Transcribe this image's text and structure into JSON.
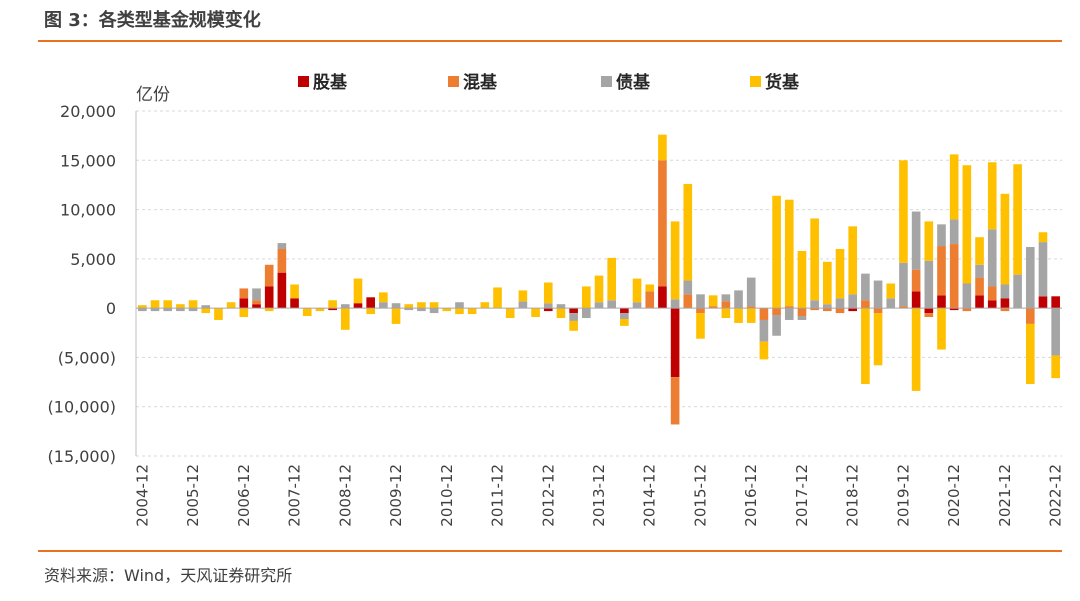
{
  "figure": {
    "title": "图 3：各类型基金规模变化",
    "source": "资料来源：Wind，天风证券研究所"
  },
  "colors": {
    "accent_rule": "#e8731c",
    "gridline": "#d9d9d9",
    "text": "#404040"
  },
  "chart_data": {
    "type": "bar",
    "stacked": true,
    "unit": "亿份",
    "legend_position": "top",
    "grid": true,
    "ylim": [
      -15000,
      20000
    ],
    "yticks": [
      20000,
      15000,
      10000,
      5000,
      0,
      -5000,
      -10000,
      -15000
    ],
    "ytick_labels": [
      "20,000",
      "15,000",
      "10,000",
      "5,000",
      "0",
      "(5,000)",
      "(10,000)",
      "(15,000)"
    ],
    "xtick_labels": [
      "2004-12",
      "2005-12",
      "2006-12",
      "2007-12",
      "2008-12",
      "2009-12",
      "2010-12",
      "2011-12",
      "2012-12",
      "2013-12",
      "2014-12",
      "2015-12",
      "2016-12",
      "2017-12",
      "2018-12",
      "2019-12",
      "2020-12",
      "2021-12",
      "2022-12"
    ],
    "categories": [
      "2004Q4",
      "2005Q1",
      "2005Q2",
      "2005Q3",
      "2005Q4",
      "2006Q1",
      "2006Q2",
      "2006Q3",
      "2006Q4",
      "2007Q1",
      "2007Q2",
      "2007Q3",
      "2007Q4",
      "2008Q1",
      "2008Q2",
      "2008Q3",
      "2008Q4",
      "2009Q1",
      "2009Q2",
      "2009Q3",
      "2009Q4",
      "2010Q1",
      "2010Q2",
      "2010Q3",
      "2010Q4",
      "2011Q1",
      "2011Q2",
      "2011Q3",
      "2011Q4",
      "2012Q1",
      "2012Q2",
      "2012Q3",
      "2012Q4",
      "2013Q1",
      "2013Q2",
      "2013Q3",
      "2013Q4",
      "2014Q1",
      "2014Q2",
      "2014Q3",
      "2014Q4",
      "2015Q1",
      "2015Q2",
      "2015Q3",
      "2015Q4",
      "2016Q1",
      "2016Q2",
      "2016Q3",
      "2016Q4",
      "2017Q1",
      "2017Q2",
      "2017Q3",
      "2017Q4",
      "2018Q1",
      "2018Q2",
      "2018Q3",
      "2018Q4",
      "2019Q1",
      "2019Q2",
      "2019Q3",
      "2019Q4",
      "2020Q1",
      "2020Q2",
      "2020Q3",
      "2020Q4",
      "2021Q1",
      "2021Q2",
      "2021Q3",
      "2021Q4",
      "2022Q1",
      "2022Q2",
      "2022Q3",
      "2022Q4"
    ],
    "series": [
      {
        "name": "股基",
        "color": "#c00000",
        "values": [
          0,
          0,
          0,
          0,
          0,
          0,
          0,
          0,
          1000,
          400,
          2200,
          3600,
          1000,
          0,
          0,
          -200,
          0,
          500,
          1100,
          0,
          0,
          0,
          0,
          0,
          0,
          0,
          0,
          0,
          0,
          0,
          0,
          0,
          -300,
          0,
          -500,
          0,
          0,
          0,
          -500,
          0,
          0,
          2200,
          -7000,
          0,
          0,
          0,
          0,
          0,
          0,
          0,
          0,
          0,
          0,
          0,
          0,
          0,
          -300,
          0,
          0,
          0,
          0,
          1700,
          -500,
          1300,
          -200,
          0,
          1300,
          800,
          1000,
          0,
          0,
          1200,
          1200
        ]
      },
      {
        "name": "混基",
        "color": "#ed7d31",
        "values": [
          0,
          0,
          0,
          0,
          0,
          0,
          0,
          0,
          1000,
          400,
          2200,
          2400,
          0,
          0,
          0,
          0,
          0,
          0,
          0,
          0,
          0,
          0,
          0,
          0,
          0,
          0,
          0,
          0,
          0,
          0,
          0,
          0,
          0,
          0,
          0,
          0,
          0,
          0,
          0,
          0,
          1700,
          12800,
          -4800,
          1400,
          -500,
          200,
          700,
          0,
          200,
          -1200,
          -700,
          200,
          -800,
          -200,
          -300,
          -500,
          0,
          800,
          -500,
          0,
          200,
          2200,
          -400,
          5000,
          6500,
          -300,
          1800,
          1400,
          -300,
          0,
          -1600,
          0,
          0
        ]
      },
      {
        "name": "债基",
        "color": "#a5a5a5",
        "values": [
          -300,
          -300,
          -300,
          -300,
          -300,
          300,
          0,
          0,
          0,
          1200,
          0,
          600,
          0,
          0,
          0,
          0,
          400,
          0,
          0,
          600,
          500,
          -200,
          -300,
          -500,
          0,
          600,
          0,
          0,
          0,
          0,
          700,
          0,
          500,
          400,
          -800,
          -1000,
          600,
          800,
          -600,
          600,
          0,
          0,
          900,
          1400,
          1400,
          0,
          700,
          1800,
          2900,
          -2200,
          -2100,
          -1200,
          -400,
          800,
          400,
          1000,
          1400,
          2700,
          2800,
          1000,
          4400,
          5900,
          4800,
          2200,
          2500,
          2500,
          1300,
          5800,
          1400,
          3400,
          6200,
          5500,
          -4800
        ]
      },
      {
        "name": "货基",
        "color": "#ffc000",
        "values": [
          300,
          800,
          800,
          400,
          800,
          -500,
          -1200,
          600,
          -900,
          0,
          -300,
          0,
          1400,
          -800,
          -300,
          800,
          -2200,
          2500,
          -600,
          1000,
          -1600,
          400,
          600,
          600,
          -300,
          -600,
          -600,
          600,
          2100,
          -1000,
          1100,
          -900,
          2100,
          -1000,
          -1000,
          2200,
          2700,
          4300,
          -700,
          2400,
          700,
          2600,
          7900,
          9800,
          -2600,
          1100,
          -1000,
          -1500,
          -1500,
          -1800,
          11400,
          10800,
          5800,
          8300,
          4300,
          5000,
          6900,
          -7700,
          -5300,
          1500,
          10400,
          -8400,
          4000,
          -4200,
          6600,
          12000,
          2800,
          6800,
          9200,
          11200,
          -6100,
          1000,
          -2300
        ]
      }
    ]
  }
}
